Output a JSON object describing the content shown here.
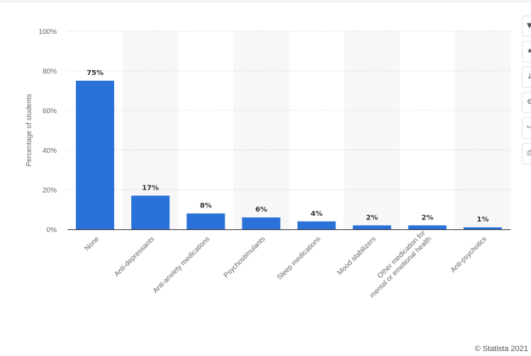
{
  "chart_data": {
    "type": "bar",
    "title": "",
    "xlabel": "",
    "ylabel": "Percentage of students",
    "ylim": [
      0,
      100
    ],
    "yticks": [
      "0%",
      "20%",
      "40%",
      "60%",
      "80%",
      "100%"
    ],
    "grid": true,
    "bar_color": "#2a72d8",
    "categories": [
      "None",
      "Anti-depressants",
      "Anti-anxiety medications",
      "Psychostimulants",
      "Sleep medications",
      "Mood stabilizers",
      "Other medication for mental or emotional health",
      "Anti-psychotics"
    ],
    "category_lines": [
      [
        "None"
      ],
      [
        "Anti-depressants"
      ],
      [
        "Anti-anxiety medications"
      ],
      [
        "Psychostimulants"
      ],
      [
        "Sleep medications"
      ],
      [
        "Mood stabilizers"
      ],
      [
        "Other medication for",
        "mental or emotional health"
      ],
      [
        "Anti-psychotics"
      ]
    ],
    "values": [
      75,
      17,
      8,
      6,
      4,
      2,
      2,
      1
    ],
    "value_labels": [
      "75%",
      "17%",
      "8%",
      "6%",
      "4%",
      "2%",
      "2%",
      "1%"
    ]
  },
  "toolbar": {
    "icons": [
      "bell-icon",
      "star-icon",
      "download-icon",
      "gear-icon",
      "share-icon",
      "print-icon"
    ]
  },
  "credit": "© Statista 2021"
}
